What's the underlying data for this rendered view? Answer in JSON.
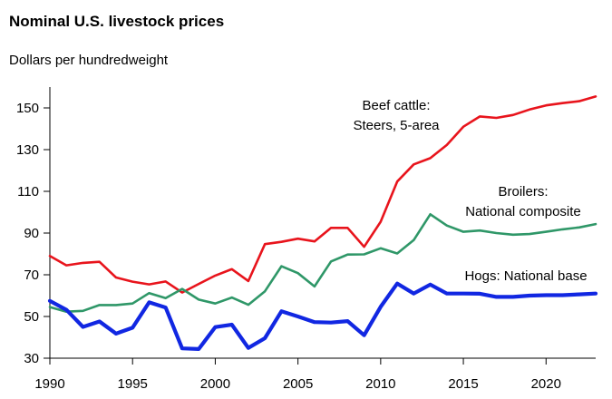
{
  "chart_data": {
    "type": "line",
    "title": "Nominal U.S. livestock prices",
    "ylabel": "Dollars per hundredweight",
    "xlabel": "",
    "xlim": [
      1990,
      2023
    ],
    "ylim": [
      30,
      160
    ],
    "xticks": [
      1990,
      1995,
      2000,
      2005,
      2010,
      2015,
      2020
    ],
    "yticks": [
      30,
      50,
      70,
      90,
      110,
      130,
      150
    ],
    "grid": false,
    "legend": "inline labels",
    "x": [
      1990,
      1991,
      1992,
      1993,
      1994,
      1995,
      1996,
      1997,
      1998,
      1999,
      2000,
      2001,
      2002,
      2003,
      2004,
      2005,
      2006,
      2007,
      2008,
      2009,
      2010,
      2011,
      2012,
      2013,
      2014,
      2015,
      2016,
      2017,
      2018,
      2019,
      2020,
      2021,
      2022,
      2023
    ],
    "series": [
      {
        "name": "Beef cattle: Steers, 5-area",
        "label_lines": [
          "Beef cattle:",
          "Steers, 5-area"
        ],
        "color": "#e8141c",
        "values": [
          79,
          74.5,
          75.7,
          76.2,
          68.7,
          66.7,
          65.4,
          66.8,
          61.5,
          65.6,
          69.6,
          72.7,
          67,
          84.7,
          85.8,
          87.3,
          86,
          92.5,
          92.5,
          83.4,
          95.4,
          114.7,
          122.9,
          125.9,
          132.2,
          141,
          145.9,
          145.2,
          146.6,
          149.2,
          151.2,
          152.3,
          153.2,
          155.5
        ]
      },
      {
        "name": "Broilers: National composite",
        "label_lines": [
          "Broilers:",
          "National composite"
        ],
        "color": "#2f9768",
        "values": [
          54.5,
          52.3,
          52.7,
          55.5,
          55.5,
          56.2,
          61.2,
          58.8,
          63.2,
          58.1,
          56.2,
          59.1,
          55.6,
          62.1,
          74.1,
          70.8,
          64.4,
          76.4,
          79.7,
          79.8,
          82.7,
          80.2,
          86.6,
          99,
          93.6,
          90.6,
          91.2,
          90,
          89.2,
          89.5,
          90.6,
          91.8,
          92.7,
          94.3
        ]
      },
      {
        "name": "Hogs: National base",
        "label_lines": [
          "Hogs: National base"
        ],
        "color": "#1127e2",
        "values": [
          57.5,
          53.2,
          45,
          47.6,
          41.8,
          44.6,
          56.8,
          54.3,
          34.7,
          34.4,
          44.9,
          46.1,
          34.9,
          39.6,
          52.5,
          50,
          47.3,
          47.1,
          47.8,
          41,
          54.6,
          65.8,
          61,
          65.3,
          61,
          61,
          60.9,
          59.4,
          59.4,
          60,
          60.2,
          60.2,
          60.6,
          61
        ]
      }
    ]
  }
}
